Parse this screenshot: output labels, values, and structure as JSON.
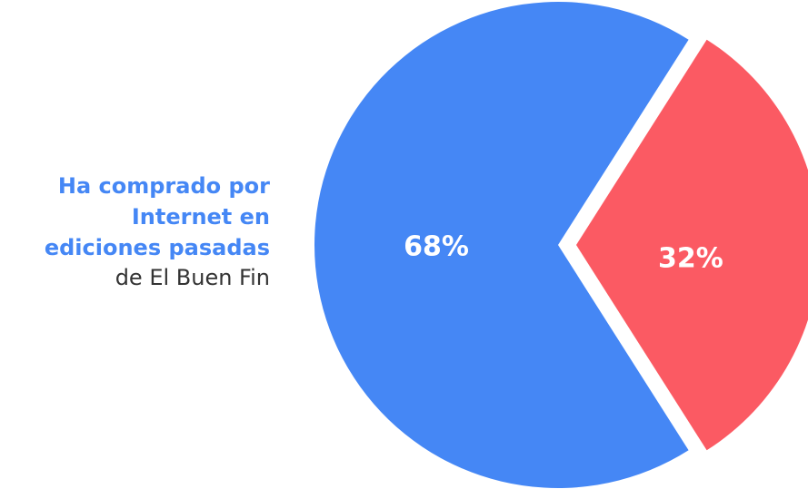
{
  "chart_data": {
    "type": "pie",
    "series": [
      {
        "name": null,
        "colors": [
          "#4587f5",
          "#fb5a63"
        ],
        "values": [
          68,
          32
        ],
        "value_labels": [
          "68%",
          "32%"
        ]
      }
    ],
    "annotation": {
      "highlight": [
        "Ha comprado por",
        "Internet en",
        "ediciones pasadas"
      ],
      "rest": "de El Buen Fin"
    }
  }
}
